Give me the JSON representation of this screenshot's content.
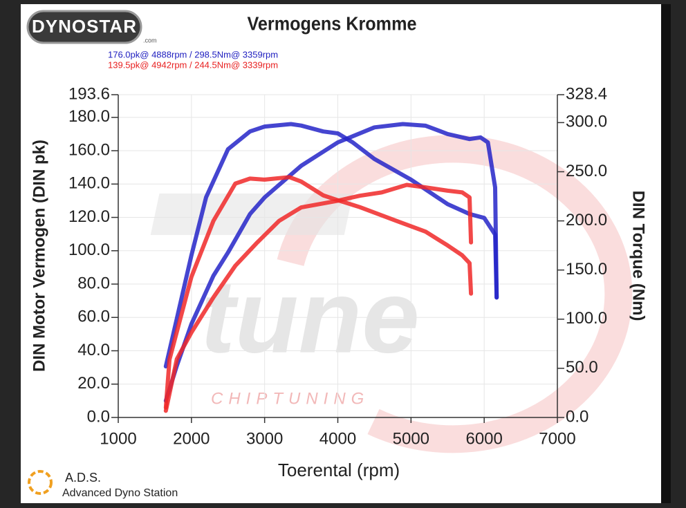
{
  "logo": {
    "name": "DYNOSTAR",
    "suffix": ".com"
  },
  "footer": {
    "short": "A.D.S.",
    "long": "Advanced Dyno Station"
  },
  "watermark": {
    "brand": "tune",
    "tagline": "CHIPTUNING"
  },
  "chart_data": {
    "type": "line",
    "title": "Vermogens Kromme",
    "annotations": [
      {
        "text": "176.0pk@ 4888rpm / 298.5Nm@ 3359rpm",
        "color": "#2020c0"
      },
      {
        "text": "139.5pk@ 4942rpm / 244.5Nm@ 3339rpm",
        "color": "#e82020"
      }
    ],
    "x_label": "Toerental (rpm)",
    "y_label": "DIN Motor Vermogen (DIN pk)",
    "y2_label": "DIN Torque (Nm)",
    "xlim": [
      1000,
      7000
    ],
    "xticks": [
      1000,
      2000,
      3000,
      4000,
      5000,
      6000,
      7000
    ],
    "ylim": [
      0,
      193.6
    ],
    "yticks": [
      {
        "value": 0,
        "label": "0.0"
      },
      {
        "value": 20,
        "label": "20.0"
      },
      {
        "value": 40,
        "label": "40.0"
      },
      {
        "value": 60,
        "label": "60.0"
      },
      {
        "value": 80,
        "label": "80.0"
      },
      {
        "value": 100,
        "label": "100.0"
      },
      {
        "value": 120,
        "label": "120.0"
      },
      {
        "value": 140,
        "label": "140.0"
      },
      {
        "value": 160,
        "label": "160.0"
      },
      {
        "value": 180,
        "label": "180.0"
      },
      193.6
    ],
    "y2lim": [
      0,
      328.4
    ],
    "y2ticks": [
      {
        "value": 0,
        "label": "0.0"
      },
      {
        "value": 50,
        "label": "50.0"
      },
      {
        "value": 100,
        "label": "100.0"
      },
      {
        "value": 150,
        "label": "150.0"
      },
      {
        "value": 200,
        "label": "200.0"
      },
      {
        "value": 250,
        "label": "250.0"
      },
      {
        "value": 300,
        "label": "300.0"
      },
      328.4
    ],
    "grid": true,
    "series": [
      {
        "color": "#2424c8",
        "axis": "y2",
        "x": [
          1650,
          2000,
          2200,
          2500,
          2800,
          3000,
          3359,
          3500,
          3800,
          4000,
          4200,
          4500,
          5000,
          5500,
          5800,
          6000,
          6150,
          6170
        ],
        "values": [
          52,
          165,
          224,
          273,
          291,
          296,
          298.5,
          297,
          291,
          289,
          280,
          263,
          242,
          217,
          207,
          203,
          186,
          122
        ]
      },
      {
        "color": "#2424c8",
        "x": [
          1650,
          1800,
          2000,
          2300,
          2500,
          2800,
          3000,
          3500,
          4000,
          4500,
          4888,
          5200,
          5500,
          5800,
          5950,
          6050,
          6150,
          6170
        ],
        "values": [
          10,
          31,
          56,
          85,
          99,
          122,
          132,
          151,
          165,
          174,
          176.0,
          175,
          170,
          167,
          168,
          165,
          138,
          72
        ]
      },
      {
        "color": "#f02828",
        "axis": "y2",
        "x": [
          1650,
          1700,
          2000,
          2300,
          2600,
          2800,
          3000,
          3339,
          3500,
          3800,
          4000,
          4300,
          4800,
          5200,
          5500,
          5700,
          5800,
          5820
        ],
        "values": [
          10,
          59,
          143,
          200,
          238,
          243,
          242,
          244.5,
          240,
          226,
          221,
          214,
          200,
          189,
          175,
          165,
          157,
          126
        ]
      },
      {
        "color": "#f02828",
        "x": [
          1650,
          1800,
          2000,
          2300,
          2600,
          2900,
          3200,
          3500,
          4000,
          4300,
          4600,
          4942,
          5200,
          5500,
          5700,
          5800,
          5820
        ],
        "values": [
          4,
          35,
          51,
          72,
          91,
          105,
          118,
          126,
          130,
          133,
          135,
          139.5,
          138,
          136,
          135,
          132,
          105
        ]
      }
    ]
  }
}
